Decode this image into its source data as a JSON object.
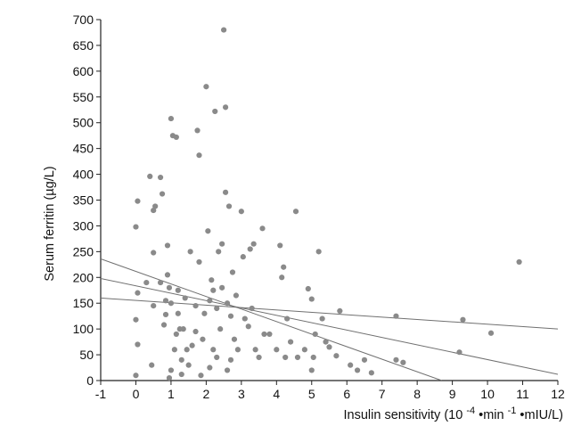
{
  "chart_data": {
    "type": "scatter",
    "title": "",
    "xlabel": {
      "text": "Insulin sensitivity (10",
      "sup1": "-4",
      "mid1": "•min",
      "sup2": "-1",
      "mid2": "•mIU/L)"
    },
    "ylabel": "Serum ferritin (µg/L)",
    "xlim": [
      -1,
      12
    ],
    "ylim": [
      0,
      700
    ],
    "x_ticks": [
      "-1",
      "0",
      "1",
      "2",
      "3",
      "4",
      "5",
      "6",
      "7",
      "8",
      "9",
      "10",
      "11",
      "12"
    ],
    "y_ticks": [
      "0",
      "50",
      "100",
      "150",
      "200",
      "250",
      "300",
      "350",
      "400",
      "450",
      "500",
      "550",
      "600",
      "650",
      "700"
    ],
    "grid": false,
    "colors": {
      "points": "#8a8a8a",
      "lines": "#707070",
      "axes": "#222222"
    },
    "series": [
      {
        "points": [
          [
            0.0,
            10
          ],
          [
            0.05,
            70
          ],
          [
            0.0,
            118
          ],
          [
            0.05,
            170
          ],
          [
            0.0,
            298
          ],
          [
            0.05,
            348
          ],
          [
            0.3,
            190
          ],
          [
            0.4,
            396
          ],
          [
            0.45,
            30
          ],
          [
            0.5,
            145
          ],
          [
            0.5,
            248
          ],
          [
            0.5,
            330
          ],
          [
            0.55,
            338
          ],
          [
            0.7,
            190
          ],
          [
            0.7,
            394
          ],
          [
            0.75,
            362
          ],
          [
            0.8,
            108
          ],
          [
            0.85,
            128
          ],
          [
            0.85,
            155
          ],
          [
            0.9,
            205
          ],
          [
            0.9,
            262
          ],
          [
            0.95,
            5
          ],
          [
            0.95,
            180
          ],
          [
            1.0,
            508
          ],
          [
            1.0,
            150
          ],
          [
            1.0,
            20
          ],
          [
            1.05,
            475
          ],
          [
            1.1,
            60
          ],
          [
            1.15,
            472
          ],
          [
            1.15,
            90
          ],
          [
            1.2,
            130
          ],
          [
            1.2,
            175
          ],
          [
            1.25,
            100
          ],
          [
            1.3,
            12
          ],
          [
            1.3,
            40
          ],
          [
            1.35,
            100
          ],
          [
            1.4,
            160
          ],
          [
            1.45,
            60
          ],
          [
            1.5,
            30
          ],
          [
            1.55,
            250
          ],
          [
            1.6,
            68
          ],
          [
            1.7,
            95
          ],
          [
            1.7,
            145
          ],
          [
            1.75,
            485
          ],
          [
            1.8,
            437
          ],
          [
            1.8,
            230
          ],
          [
            1.85,
            10
          ],
          [
            1.9,
            80
          ],
          [
            1.95,
            130
          ],
          [
            2.0,
            570
          ],
          [
            2.05,
            290
          ],
          [
            2.1,
            155
          ],
          [
            2.1,
            25
          ],
          [
            2.15,
            195
          ],
          [
            2.2,
            60
          ],
          [
            2.2,
            175
          ],
          [
            2.25,
            522
          ],
          [
            2.3,
            45
          ],
          [
            2.3,
            140
          ],
          [
            2.35,
            250
          ],
          [
            2.4,
            100
          ],
          [
            2.45,
            180
          ],
          [
            2.45,
            265
          ],
          [
            2.5,
            680
          ],
          [
            2.55,
            365
          ],
          [
            2.55,
            530
          ],
          [
            2.6,
            20
          ],
          [
            2.6,
            150
          ],
          [
            2.65,
            338
          ],
          [
            2.7,
            40
          ],
          [
            2.7,
            125
          ],
          [
            2.75,
            210
          ],
          [
            2.8,
            80
          ],
          [
            2.85,
            165
          ],
          [
            2.9,
            60
          ],
          [
            3.0,
            328
          ],
          [
            3.05,
            240
          ],
          [
            3.1,
            120
          ],
          [
            3.2,
            105
          ],
          [
            3.25,
            255
          ],
          [
            3.3,
            140
          ],
          [
            3.35,
            265
          ],
          [
            3.4,
            60
          ],
          [
            3.5,
            45
          ],
          [
            3.6,
            295
          ],
          [
            3.65,
            90
          ],
          [
            3.8,
            90
          ],
          [
            4.0,
            60
          ],
          [
            4.1,
            262
          ],
          [
            4.15,
            200
          ],
          [
            4.2,
            220
          ],
          [
            4.25,
            45
          ],
          [
            4.3,
            120
          ],
          [
            4.4,
            75
          ],
          [
            4.55,
            328
          ],
          [
            4.6,
            45
          ],
          [
            4.8,
            60
          ],
          [
            4.9,
            178
          ],
          [
            5.0,
            158
          ],
          [
            5.0,
            20
          ],
          [
            5.05,
            45
          ],
          [
            5.1,
            90
          ],
          [
            5.2,
            250
          ],
          [
            5.3,
            120
          ],
          [
            5.4,
            75
          ],
          [
            5.5,
            65
          ],
          [
            5.7,
            48
          ],
          [
            5.8,
            135
          ],
          [
            6.1,
            30
          ],
          [
            6.3,
            20
          ],
          [
            6.5,
            40
          ],
          [
            6.7,
            15
          ],
          [
            7.4,
            125
          ],
          [
            7.4,
            40
          ],
          [
            7.6,
            35
          ],
          [
            9.3,
            118
          ],
          [
            9.2,
            55
          ],
          [
            10.1,
            92
          ],
          [
            10.9,
            230
          ]
        ]
      }
    ],
    "lines": [
      {
        "name": "",
        "from": [
          -1,
          236
        ],
        "to": [
          8.7,
          0
        ]
      },
      {
        "name": "",
        "from": [
          -1,
          198
        ],
        "to": [
          12,
          12
        ]
      },
      {
        "name": "",
        "from": [
          -1,
          160
        ],
        "to": [
          12,
          100
        ]
      }
    ]
  }
}
